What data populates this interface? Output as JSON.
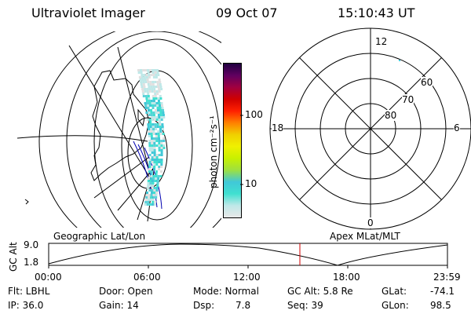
{
  "header": {
    "instrument": "Ultraviolet Imager",
    "date": "09 Oct 07",
    "time": "15:10:43 UT"
  },
  "colorbar": {
    "unit_label": "photon cm⁻²s⁻¹",
    "tick_100": "100",
    "tick_10": "10",
    "colors": [
      "#e8e8e8",
      "#bfe8e8",
      "#40e0d0",
      "#40c8d8",
      "#9ee040",
      "#c8f000",
      "#f0f000",
      "#f0d000",
      "#ff8000",
      "#ff2000",
      "#d00000",
      "#a00040",
      "#600060",
      "#200040"
    ]
  },
  "polar": {
    "labels": {
      "top": "12",
      "left": "18",
      "right": "6",
      "bottom": "0",
      "r60": "60",
      "r70": "70",
      "r80": "80"
    }
  },
  "timeline": {
    "left_title": "Geographic Lat/Lon",
    "right_title": "Apex MLat/MLT",
    "yaxis_label": "GC Alt",
    "ymax_label": "9.0",
    "ymin_label": "1.8",
    "xticks": [
      "00:00",
      "06:00",
      "12:00",
      "18:00",
      "23:59"
    ],
    "marker_color": "#d00000"
  },
  "info": {
    "flt_label": "Flt: LBHL",
    "door_label": "Door: Open",
    "mode_label": "Mode: Normal",
    "gcalt_label": "GC Alt: 5.8 Re",
    "glat_label": "GLat:",
    "glat_value": "-74.1",
    "ip_label": "IP: 36.0",
    "gain_label": "Gain: 14",
    "dsp_label": "Dsp:",
    "dsp_value": "7.8",
    "seq_label": "Seq: 39",
    "glon_label": "GLon:",
    "glon_value": "98.5"
  }
}
